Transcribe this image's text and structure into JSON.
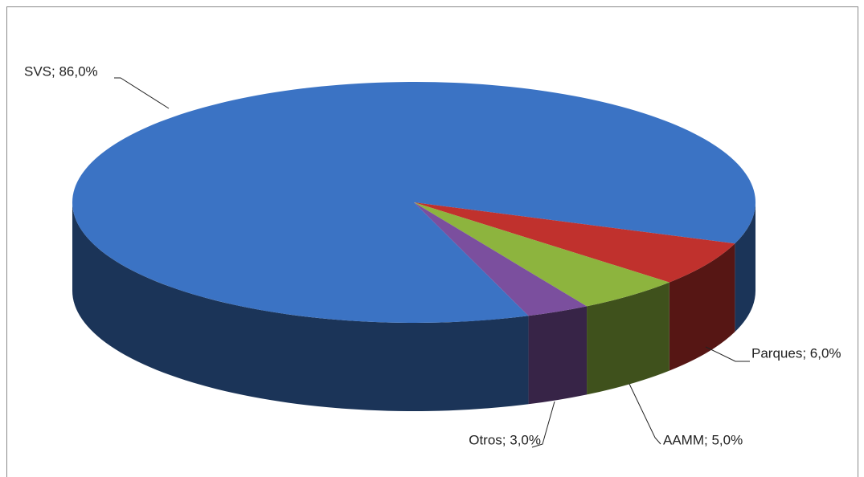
{
  "chart_data": {
    "type": "pie",
    "values": [
      86,
      6,
      5,
      3
    ],
    "value_labels": [
      "SVS; 86,0%",
      "Parques; 6,0%",
      "AAMM; 5,0%",
      "Otros; 3,0%"
    ],
    "colors": [
      "#3b73c4",
      "#c0312d",
      "#8db43e",
      "#7b4f9e"
    ]
  }
}
